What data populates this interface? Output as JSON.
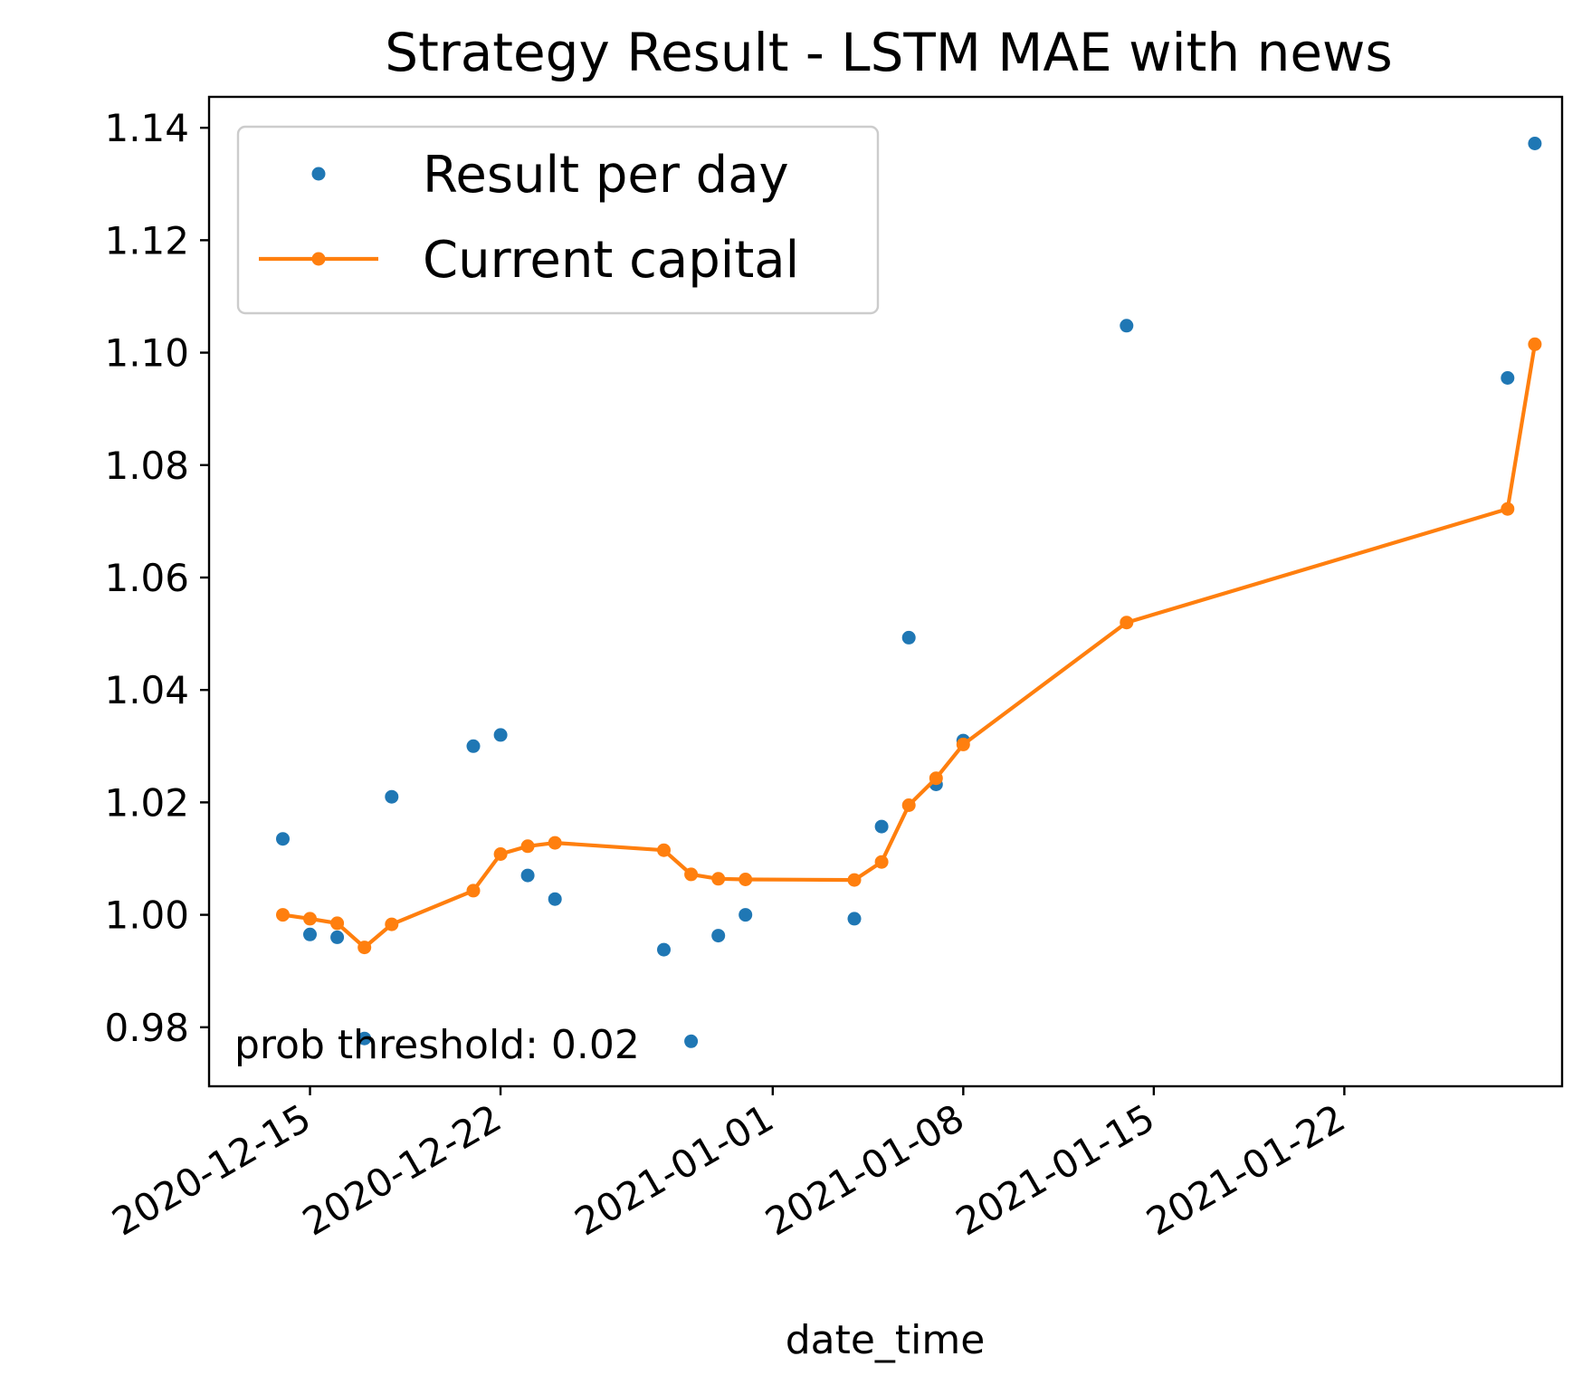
{
  "chart_data": {
    "type": "line",
    "title": "Strategy Result - LSTM MAE with news",
    "xlabel": "date_time",
    "ylabel": "",
    "xlim": [
      "2020-12-11T07:00",
      "2021-01-30T00:00"
    ],
    "ylim": [
      0.9695,
      1.1455
    ],
    "x_ticks": [
      "2020-12-15",
      "2020-12-22",
      "2021-01-01",
      "2021-01-08",
      "2021-01-15",
      "2021-01-22"
    ],
    "y_ticks": [
      "0.98",
      "1.00",
      "1.02",
      "1.04",
      "1.06",
      "1.08",
      "1.10",
      "1.12",
      "1.14"
    ],
    "legend": {
      "position": "top-left",
      "entries": [
        "Result per day",
        "Current capital"
      ]
    },
    "annotation": "prob threshold: 0.02",
    "grid": false,
    "series": [
      {
        "name": "Result per day",
        "style": "markers",
        "color": "#1f77b4",
        "points": [
          [
            "2020-12-14",
            1.0135
          ],
          [
            "2020-12-15",
            0.9965
          ],
          [
            "2020-12-16",
            0.996
          ],
          [
            "2020-12-17",
            0.978
          ],
          [
            "2020-12-18",
            1.021
          ],
          [
            "2020-12-21",
            1.03
          ],
          [
            "2020-12-22",
            1.032
          ],
          [
            "2020-12-23",
            1.007
          ],
          [
            "2020-12-24",
            1.0028
          ],
          [
            "2020-12-28",
            0.9938
          ],
          [
            "2020-12-29",
            0.9775
          ],
          [
            "2020-12-30",
            0.9963
          ],
          [
            "2020-12-31",
            1.0
          ],
          [
            "2021-01-04",
            0.9993
          ],
          [
            "2021-01-05",
            1.0157
          ],
          [
            "2021-01-06",
            1.0493
          ],
          [
            "2021-01-07",
            1.0232
          ],
          [
            "2021-01-08",
            1.031
          ],
          [
            "2021-01-14",
            1.1048
          ],
          [
            "2021-01-28",
            1.0955
          ],
          [
            "2021-01-29",
            1.1372
          ]
        ]
      },
      {
        "name": "Current capital",
        "style": "line-markers",
        "color": "#ff7f0e",
        "points": [
          [
            "2020-12-14",
            1.0
          ],
          [
            "2020-12-15",
            0.9993
          ],
          [
            "2020-12-16",
            0.9985
          ],
          [
            "2020-12-17",
            0.9942
          ],
          [
            "2020-12-18",
            0.9983
          ],
          [
            "2020-12-21",
            1.0043
          ],
          [
            "2020-12-22",
            1.0108
          ],
          [
            "2020-12-23",
            1.0122
          ],
          [
            "2020-12-24",
            1.0128
          ],
          [
            "2020-12-28",
            1.0115
          ],
          [
            "2020-12-29",
            1.0072
          ],
          [
            "2020-12-30",
            1.0064
          ],
          [
            "2020-12-31",
            1.0063
          ],
          [
            "2021-01-04",
            1.0062
          ],
          [
            "2021-01-05",
            1.0094
          ],
          [
            "2021-01-06",
            1.0195
          ],
          [
            "2021-01-07",
            1.0243
          ],
          [
            "2021-01-08",
            1.0303
          ],
          [
            "2021-01-14",
            1.052
          ],
          [
            "2021-01-28",
            1.0722
          ],
          [
            "2021-01-29",
            1.1015
          ]
        ]
      }
    ]
  }
}
